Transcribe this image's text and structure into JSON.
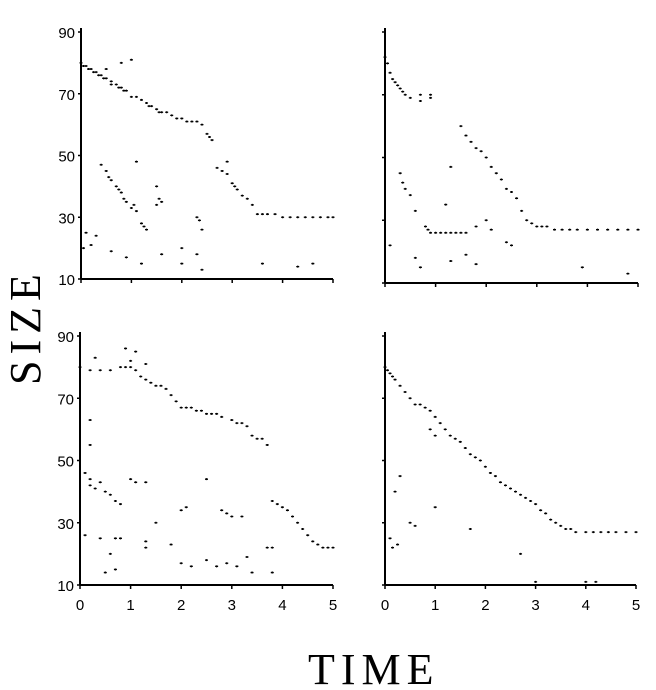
{
  "chart_data": {
    "type": "scatter",
    "xlabel": "TIME",
    "ylabel": "SIZE",
    "xlim": [
      0,
      5
    ],
    "ylim": [
      10,
      90
    ],
    "xticks": [
      "0",
      "1",
      "2",
      "3",
      "4",
      "5"
    ],
    "yticks": [
      "10",
      "30",
      "50",
      "70",
      "90"
    ],
    "colors": {
      "points": "#000000",
      "axes": "#000000"
    },
    "panels": [
      {
        "position": "top-left",
        "points": [
          [
            0,
            80
          ],
          [
            0.05,
            79
          ],
          [
            0.1,
            79
          ],
          [
            0.15,
            78
          ],
          [
            0.2,
            78
          ],
          [
            0.25,
            77
          ],
          [
            0.3,
            77
          ],
          [
            0.35,
            76
          ],
          [
            0.4,
            76
          ],
          [
            0.45,
            75
          ],
          [
            0.5,
            75
          ],
          [
            0.6,
            74
          ],
          [
            0.7,
            73
          ],
          [
            0.75,
            72
          ],
          [
            0.8,
            72
          ],
          [
            0.85,
            71
          ],
          [
            0.9,
            71
          ],
          [
            1.0,
            69
          ],
          [
            1.1,
            69
          ],
          [
            1.2,
            68
          ],
          [
            1.3,
            67
          ],
          [
            1.35,
            66
          ],
          [
            1.4,
            66
          ],
          [
            1.5,
            65
          ],
          [
            1.55,
            64
          ],
          [
            1.6,
            64
          ],
          [
            1.7,
            64
          ],
          [
            1.8,
            63
          ],
          [
            1.9,
            62
          ],
          [
            2.0,
            62
          ],
          [
            2.1,
            61
          ],
          [
            2.2,
            61
          ],
          [
            2.3,
            61
          ],
          [
            2.4,
            60
          ],
          [
            2.5,
            57
          ],
          [
            2.55,
            56
          ],
          [
            2.6,
            55
          ],
          [
            2.7,
            46
          ],
          [
            2.8,
            45
          ],
          [
            2.9,
            44
          ],
          [
            3.0,
            41
          ],
          [
            3.05,
            40
          ],
          [
            3.1,
            39
          ],
          [
            3.2,
            37
          ],
          [
            3.3,
            36
          ],
          [
            3.4,
            34
          ],
          [
            3.5,
            31
          ],
          [
            3.6,
            31
          ],
          [
            3.7,
            31
          ],
          [
            3.85,
            31
          ],
          [
            4.0,
            30
          ],
          [
            4.15,
            30
          ],
          [
            4.3,
            30
          ],
          [
            4.45,
            30
          ],
          [
            4.6,
            30
          ],
          [
            4.75,
            30
          ],
          [
            4.9,
            30
          ],
          [
            5.0,
            30
          ],
          [
            0.5,
            45
          ],
          [
            0.55,
            43
          ],
          [
            0.6,
            42
          ],
          [
            0.7,
            40
          ],
          [
            0.75,
            39
          ],
          [
            0.8,
            38
          ],
          [
            0.85,
            36
          ],
          [
            0.9,
            35
          ],
          [
            1.0,
            33
          ],
          [
            1.05,
            34
          ],
          [
            1.1,
            32
          ],
          [
            1.2,
            28
          ],
          [
            1.25,
            27
          ],
          [
            1.3,
            26
          ],
          [
            1.5,
            34
          ],
          [
            1.55,
            36
          ],
          [
            1.6,
            35
          ],
          [
            2.3,
            30
          ],
          [
            2.35,
            29
          ],
          [
            2.4,
            26
          ],
          [
            0.1,
            25
          ],
          [
            0.2,
            21
          ],
          [
            0.3,
            24
          ],
          [
            0.6,
            19
          ],
          [
            0.9,
            17
          ],
          [
            1.2,
            15
          ],
          [
            1.6,
            18
          ],
          [
            2.0,
            15
          ],
          [
            2.3,
            18
          ],
          [
            2.4,
            13
          ],
          [
            0.5,
            78
          ],
          [
            0.8,
            80
          ],
          [
            1.0,
            81
          ],
          [
            0.6,
            73
          ],
          [
            3.6,
            15
          ],
          [
            4.3,
            14
          ],
          [
            4.6,
            15
          ],
          [
            1.1,
            48
          ],
          [
            2.9,
            48
          ],
          [
            0.4,
            47
          ],
          [
            1.5,
            40
          ],
          [
            2.0,
            20
          ],
          [
            0.05,
            20
          ]
        ]
      },
      {
        "position": "top-right",
        "points": [
          [
            0,
            82
          ],
          [
            0.05,
            80
          ],
          [
            0.1,
            77
          ],
          [
            0.15,
            75
          ],
          [
            0.2,
            74
          ],
          [
            0.25,
            73
          ],
          [
            0.3,
            72
          ],
          [
            0.35,
            71
          ],
          [
            0.4,
            70
          ],
          [
            0.5,
            69
          ],
          [
            0.7,
            68
          ],
          [
            0.9,
            70
          ],
          [
            1.5,
            60
          ],
          [
            1.6,
            57
          ],
          [
            1.7,
            55
          ],
          [
            1.8,
            53
          ],
          [
            1.9,
            52
          ],
          [
            2.0,
            50
          ],
          [
            2.1,
            47
          ],
          [
            2.2,
            45
          ],
          [
            2.3,
            43
          ],
          [
            2.4,
            40
          ],
          [
            2.5,
            39
          ],
          [
            2.6,
            37
          ],
          [
            2.7,
            33
          ],
          [
            2.8,
            30
          ],
          [
            2.9,
            29
          ],
          [
            3.0,
            28
          ],
          [
            3.1,
            28
          ],
          [
            3.2,
            28
          ],
          [
            3.35,
            27
          ],
          [
            3.5,
            27
          ],
          [
            3.65,
            27
          ],
          [
            3.8,
            27
          ],
          [
            4.0,
            27
          ],
          [
            4.2,
            27
          ],
          [
            4.4,
            27
          ],
          [
            4.6,
            27
          ],
          [
            4.8,
            27
          ],
          [
            5.0,
            27
          ],
          [
            0.3,
            45
          ],
          [
            0.35,
            42
          ],
          [
            0.4,
            40
          ],
          [
            0.5,
            38
          ],
          [
            0.6,
            33
          ],
          [
            0.8,
            28
          ],
          [
            0.85,
            27
          ],
          [
            0.9,
            26
          ],
          [
            1.0,
            26
          ],
          [
            1.1,
            26
          ],
          [
            1.2,
            26
          ],
          [
            1.3,
            26
          ],
          [
            1.4,
            26
          ],
          [
            1.5,
            26
          ],
          [
            1.6,
            26
          ],
          [
            1.8,
            28
          ],
          [
            2.1,
            27
          ],
          [
            2.4,
            23
          ],
          [
            2.5,
            22
          ],
          [
            0.1,
            22
          ],
          [
            0.6,
            18
          ],
          [
            0.7,
            15
          ],
          [
            1.3,
            17
          ],
          [
            1.6,
            19
          ],
          [
            1.3,
            47
          ],
          [
            1.2,
            35
          ],
          [
            2.0,
            30
          ],
          [
            3.9,
            15
          ],
          [
            4.8,
            13
          ],
          [
            1.8,
            16
          ],
          [
            0.7,
            70
          ],
          [
            0.9,
            69
          ]
        ]
      },
      {
        "position": "bottom-left",
        "points": [
          [
            0,
            80
          ],
          [
            0.2,
            79
          ],
          [
            0.4,
            79
          ],
          [
            0.6,
            79
          ],
          [
            0.8,
            80
          ],
          [
            0.9,
            80
          ],
          [
            1.0,
            80
          ],
          [
            1.1,
            79
          ],
          [
            1.2,
            77
          ],
          [
            1.3,
            76
          ],
          [
            1.4,
            75
          ],
          [
            1.5,
            74
          ],
          [
            1.6,
            74
          ],
          [
            1.7,
            73
          ],
          [
            1.8,
            71
          ],
          [
            1.9,
            69
          ],
          [
            2.0,
            67
          ],
          [
            2.1,
            67
          ],
          [
            2.2,
            67
          ],
          [
            2.3,
            66
          ],
          [
            2.4,
            66
          ],
          [
            2.5,
            65
          ],
          [
            2.6,
            65
          ],
          [
            2.7,
            65
          ],
          [
            2.8,
            64
          ],
          [
            3.0,
            63
          ],
          [
            3.1,
            62
          ],
          [
            3.2,
            62
          ],
          [
            3.3,
            61
          ],
          [
            3.4,
            58
          ],
          [
            3.5,
            57
          ],
          [
            3.6,
            57
          ],
          [
            3.7,
            55
          ],
          [
            3.8,
            37
          ],
          [
            3.9,
            36
          ],
          [
            4.0,
            35
          ],
          [
            4.1,
            34
          ],
          [
            4.2,
            32
          ],
          [
            4.3,
            30
          ],
          [
            4.4,
            28
          ],
          [
            4.5,
            26
          ],
          [
            4.6,
            24
          ],
          [
            4.7,
            23
          ],
          [
            4.8,
            22
          ],
          [
            4.9,
            22
          ],
          [
            5.0,
            22
          ],
          [
            0.3,
            83
          ],
          [
            0.9,
            86
          ],
          [
            1.0,
            82
          ],
          [
            1.1,
            85
          ],
          [
            1.3,
            81
          ],
          [
            0.1,
            46
          ],
          [
            0.2,
            44
          ],
          [
            0.2,
            42
          ],
          [
            0.3,
            41
          ],
          [
            0.4,
            43
          ],
          [
            0.5,
            40
          ],
          [
            0.6,
            39
          ],
          [
            0.7,
            37
          ],
          [
            0.8,
            36
          ],
          [
            1.0,
            44
          ],
          [
            1.1,
            43
          ],
          [
            1.3,
            43
          ],
          [
            2.0,
            34
          ],
          [
            2.1,
            35
          ],
          [
            2.8,
            34
          ],
          [
            2.9,
            33
          ],
          [
            3.0,
            32
          ],
          [
            3.2,
            32
          ],
          [
            3.7,
            22
          ],
          [
            3.8,
            22
          ],
          [
            0.2,
            63
          ],
          [
            0.2,
            55
          ],
          [
            0.1,
            26
          ],
          [
            0.4,
            25
          ],
          [
            0.5,
            14
          ],
          [
            0.7,
            25
          ],
          [
            0.8,
            25
          ],
          [
            1.3,
            24
          ],
          [
            1.3,
            22
          ],
          [
            1.8,
            23
          ],
          [
            2.0,
            17
          ],
          [
            2.2,
            16
          ],
          [
            2.5,
            18
          ],
          [
            2.7,
            16
          ],
          [
            2.9,
            17
          ],
          [
            3.1,
            16
          ],
          [
            3.3,
            19
          ],
          [
            3.4,
            14
          ],
          [
            3.8,
            14
          ],
          [
            0.5,
            10
          ],
          [
            1.5,
            30
          ],
          [
            2.5,
            44
          ],
          [
            0.6,
            20
          ],
          [
            0.7,
            15
          ]
        ]
      },
      {
        "position": "bottom-right",
        "points": [
          [
            0,
            80
          ],
          [
            0.05,
            79
          ],
          [
            0.1,
            78
          ],
          [
            0.15,
            77
          ],
          [
            0.2,
            76
          ],
          [
            0.3,
            74
          ],
          [
            0.4,
            72
          ],
          [
            0.5,
            70
          ],
          [
            0.6,
            68
          ],
          [
            0.7,
            68
          ],
          [
            0.8,
            67
          ],
          [
            0.9,
            66
          ],
          [
            1.0,
            64
          ],
          [
            1.1,
            62
          ],
          [
            1.2,
            60
          ],
          [
            1.3,
            58
          ],
          [
            1.4,
            57
          ],
          [
            1.5,
            56
          ],
          [
            1.6,
            54
          ],
          [
            1.7,
            52
          ],
          [
            1.8,
            51
          ],
          [
            1.9,
            50
          ],
          [
            2.0,
            48
          ],
          [
            2.1,
            46
          ],
          [
            2.2,
            45
          ],
          [
            2.3,
            43
          ],
          [
            2.4,
            42
          ],
          [
            2.5,
            41
          ],
          [
            2.6,
            40
          ],
          [
            2.7,
            39
          ],
          [
            2.8,
            38
          ],
          [
            2.9,
            37
          ],
          [
            3.0,
            36
          ],
          [
            3.1,
            34
          ],
          [
            3.2,
            33
          ],
          [
            3.3,
            31
          ],
          [
            3.4,
            30
          ],
          [
            3.5,
            29
          ],
          [
            3.6,
            28
          ],
          [
            3.7,
            28
          ],
          [
            3.8,
            27
          ],
          [
            4.0,
            27
          ],
          [
            4.15,
            27
          ],
          [
            4.3,
            27
          ],
          [
            4.45,
            27
          ],
          [
            4.6,
            27
          ],
          [
            4.8,
            27
          ],
          [
            5.0,
            27
          ],
          [
            0.1,
            25
          ],
          [
            0.15,
            22
          ],
          [
            0.2,
            40
          ],
          [
            0.3,
            45
          ],
          [
            0.5,
            30
          ],
          [
            0.6,
            29
          ],
          [
            1.0,
            35
          ],
          [
            1.7,
            28
          ],
          [
            2.7,
            20
          ],
          [
            3.0,
            11
          ],
          [
            4.0,
            11
          ],
          [
            4.2,
            11
          ],
          [
            1.0,
            58
          ],
          [
            0.9,
            60
          ],
          [
            0.25,
            23
          ]
        ]
      }
    ]
  }
}
